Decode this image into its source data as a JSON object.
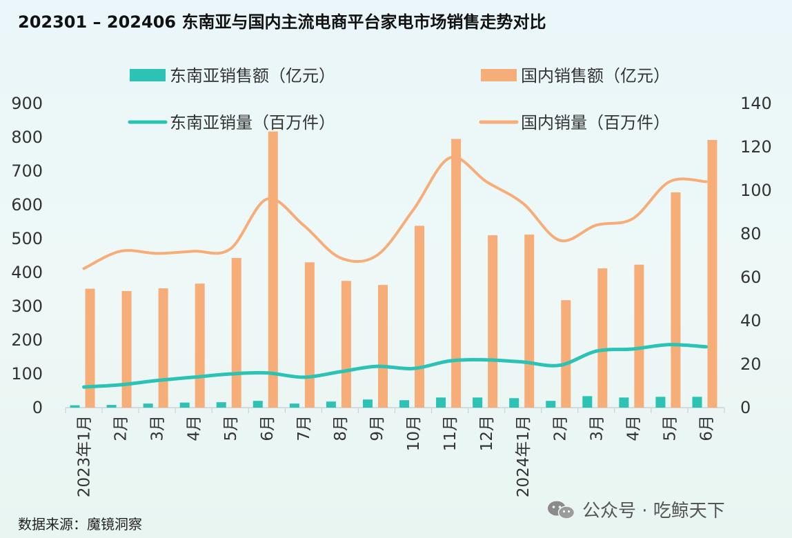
{
  "chart_data": {
    "type": "bar+line",
    "title": "202301 – 202406 东南亚与国内主流电商平台家电市场销售走势对比",
    "categories": [
      "2023年1月",
      "2月",
      "3月",
      "4月",
      "5月",
      "6月",
      "7月",
      "8月",
      "9月",
      "10月",
      "11月",
      "12月",
      "2024年1月",
      "2月",
      "3月",
      "4月",
      "5月",
      "6月"
    ],
    "y_left": {
      "ticks": [
        0,
        100,
        200,
        300,
        400,
        500,
        600,
        700,
        800,
        900
      ],
      "range": [
        0,
        900
      ]
    },
    "y_right": {
      "ticks": [
        0,
        20,
        40,
        60,
        80,
        100,
        120,
        140
      ],
      "range": [
        0,
        140
      ]
    },
    "series": [
      {
        "name": "东南亚销售额（亿元）",
        "kind": "bar",
        "axis": "left",
        "color": "#2cc2b4",
        "values": [
          7,
          8,
          12,
          15,
          16,
          20,
          12,
          18,
          24,
          22,
          30,
          30,
          28,
          20,
          34,
          30,
          32,
          32
        ]
      },
      {
        "name": "国内销售额（亿元）",
        "kind": "bar",
        "axis": "left",
        "color": "#f6ad78",
        "values": [
          352,
          345,
          353,
          367,
          443,
          817,
          430,
          375,
          363,
          538,
          795,
          510,
          512,
          318,
          412,
          423,
          637,
          792
        ]
      },
      {
        "name": "东南亚销量（百万件）",
        "kind": "line",
        "axis": "right",
        "color": "#2cc2b4",
        "values": [
          9.5,
          10.5,
          12.5,
          14,
          15.5,
          16,
          14,
          16.5,
          19,
          18,
          21.5,
          22,
          21,
          19.5,
          26,
          27,
          29,
          28
        ]
      },
      {
        "name": "国内销量（百万件）",
        "kind": "line",
        "axis": "right",
        "color": "#f6ad78",
        "values": [
          64,
          72,
          71,
          72,
          73,
          96,
          84,
          69,
          70,
          91,
          115,
          104,
          94,
          77,
          84,
          87,
          104,
          104
        ]
      }
    ]
  },
  "source_text": "数据来源：魔镜洞察",
  "watermark_text": "公众号 · 吃鲸天下"
}
